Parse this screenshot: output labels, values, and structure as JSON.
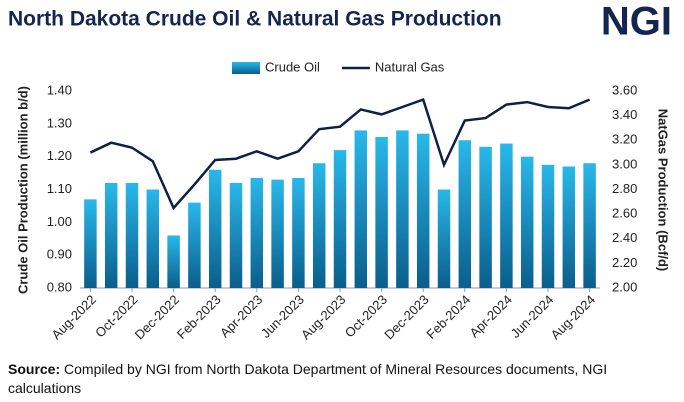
{
  "chart_data": {
    "type": "bar",
    "title": "North Dakota Crude Oil & Natural Gas Production",
    "logo": "NGI",
    "source_label": "Source:",
    "source": "Compiled by NGI from North Dakota Department of Mineral Resources documents, NGI calculations",
    "y_label": "Crude Oil Production (million b/d)",
    "y2_label": "NatGas Production (Bcf/d)",
    "categories": [
      "Aug-2022",
      null,
      "Oct-2022",
      null,
      "Dec-2022",
      null,
      "Feb-2023",
      null,
      "Apr-2023",
      null,
      "Jun-2023",
      null,
      "Aug-2023",
      null,
      "Oct-2023",
      null,
      "Dec-2023",
      null,
      "Feb-2024",
      null,
      "Apr-2024",
      null,
      "Jun-2024",
      null,
      "Aug-2024"
    ],
    "series": [
      {
        "name": "Crude Oil",
        "type": "bar",
        "color": "#29b8ea",
        "values": [
          1.07,
          1.12,
          1.12,
          1.1,
          0.96,
          1.06,
          1.16,
          1.12,
          1.135,
          1.13,
          1.135,
          1.18,
          1.22,
          1.28,
          1.26,
          1.28,
          1.27,
          1.1,
          1.25,
          1.23,
          1.24,
          1.2,
          1.175,
          1.17,
          1.18
        ]
      },
      {
        "name": "Natural Gas",
        "type": "line",
        "axis": "y2",
        "color": "#0f1f45",
        "values": [
          3.1,
          3.18,
          3.14,
          3.03,
          2.65,
          2.84,
          3.04,
          3.05,
          3.11,
          3.05,
          3.11,
          3.29,
          3.31,
          3.45,
          3.41,
          3.47,
          3.53,
          3.0,
          3.36,
          3.38,
          3.49,
          3.51,
          3.47,
          3.46,
          3.53
        ]
      }
    ],
    "ylim": [
      0.8,
      1.4
    ],
    "yticks": [
      {
        "value": 0.8,
        "label": "0.80"
      },
      {
        "value": 0.9,
        "label": "0.90"
      },
      {
        "value": 1.0,
        "label": "1.00"
      },
      {
        "value": 1.1,
        "label": "1.10"
      },
      {
        "value": 1.2,
        "label": "1.20"
      },
      {
        "value": 1.3,
        "label": "1.30"
      },
      {
        "value": 1.4,
        "label": "1.40"
      }
    ],
    "y2lim": [
      2.0,
      3.6
    ],
    "y2ticks": [
      {
        "value": 2.0,
        "label": "2.00"
      },
      {
        "value": 2.2,
        "label": "2.20"
      },
      {
        "value": 2.4,
        "label": "2.40"
      },
      {
        "value": 2.6,
        "label": "2.60"
      },
      {
        "value": 2.8,
        "label": "2.80"
      },
      {
        "value": 3.0,
        "label": "3.00"
      },
      {
        "value": 3.2,
        "label": "3.20"
      },
      {
        "value": 3.4,
        "label": "3.40"
      },
      {
        "value": 3.6,
        "label": "3.60"
      }
    ],
    "grid": false,
    "legend": "top"
  }
}
